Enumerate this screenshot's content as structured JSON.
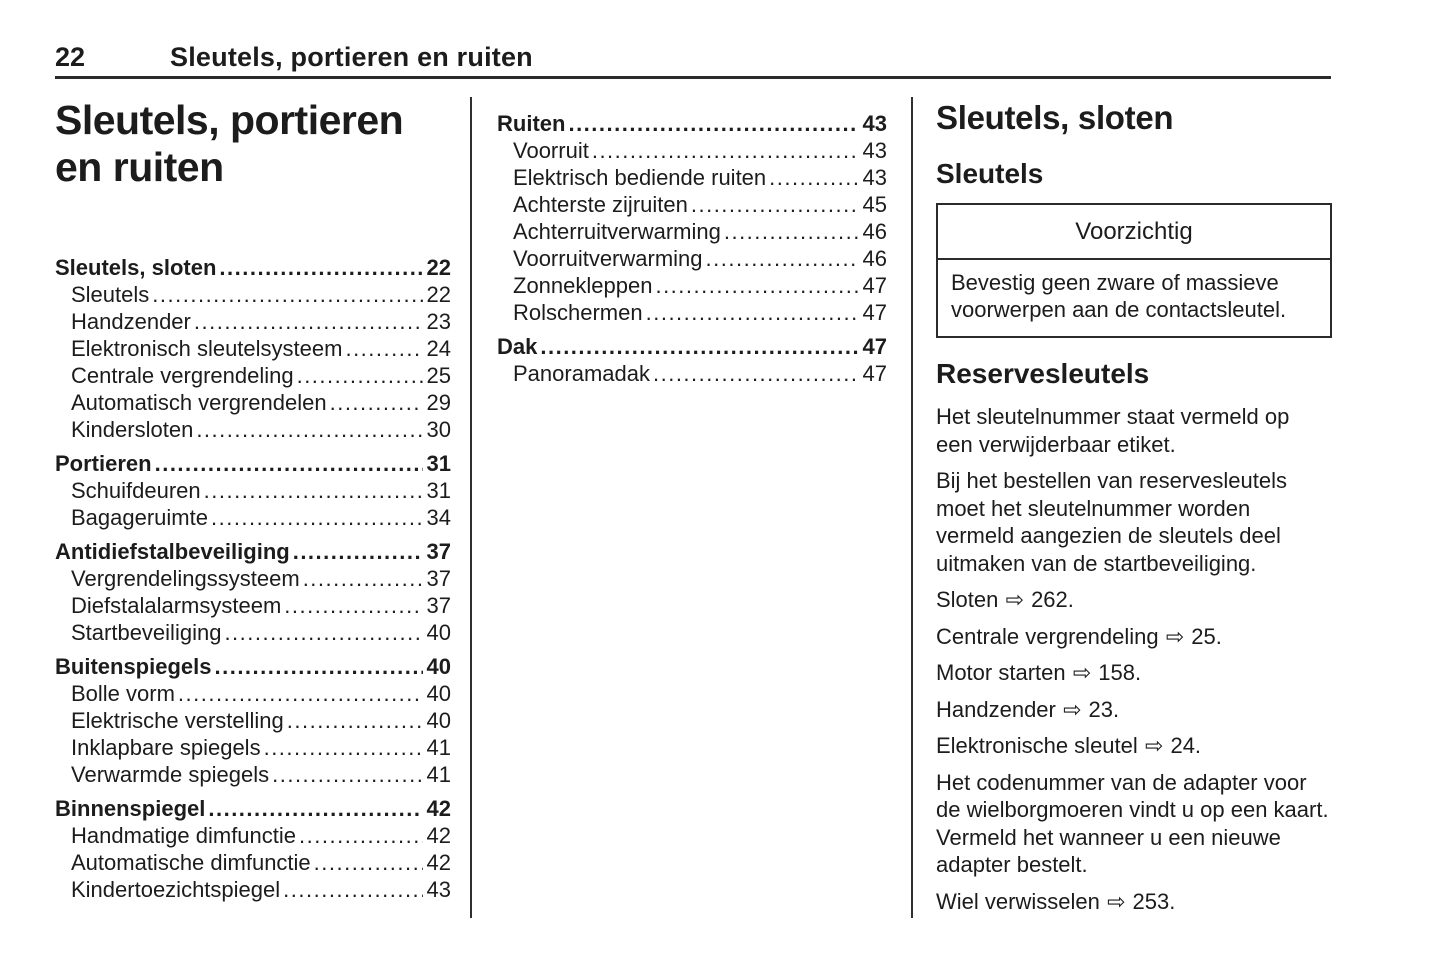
{
  "header": {
    "page_number": "22",
    "title": "Sleutels, portieren en ruiten"
  },
  "chapter": {
    "title_lines": [
      "Sleutels, portieren",
      "en ruiten"
    ]
  },
  "toc": {
    "column1": [
      {
        "label": "Sleutels, sloten",
        "page": "22",
        "level": 0
      },
      {
        "label": "Sleutels",
        "page": "22",
        "level": 1
      },
      {
        "label": "Handzender",
        "page": "23",
        "level": 1
      },
      {
        "label": "Elektronisch sleutelsysteem",
        "page": "24",
        "level": 1
      },
      {
        "label": "Centrale vergrendeling",
        "page": "25",
        "level": 1
      },
      {
        "label": "Automatisch vergrendelen",
        "page": "29",
        "level": 1
      },
      {
        "label": "Kindersloten",
        "page": "30",
        "level": 1
      },
      {
        "label": "Portieren",
        "page": "31",
        "level": 0
      },
      {
        "label": "Schuifdeuren",
        "page": "31",
        "level": 1
      },
      {
        "label": "Bagageruimte",
        "page": "34",
        "level": 1
      },
      {
        "label": "Antidiefstalbeveiliging",
        "page": "37",
        "level": 0
      },
      {
        "label": "Vergrendelingssysteem",
        "page": "37",
        "level": 1
      },
      {
        "label": "Diefstalalarmsysteem",
        "page": "37",
        "level": 1
      },
      {
        "label": "Startbeveiliging",
        "page": "40",
        "level": 1
      },
      {
        "label": "Buitenspiegels",
        "page": "40",
        "level": 0
      },
      {
        "label": "Bolle vorm",
        "page": "40",
        "level": 1
      },
      {
        "label": "Elektrische verstelling",
        "page": "40",
        "level": 1
      },
      {
        "label": "Inklapbare spiegels",
        "page": "41",
        "level": 1
      },
      {
        "label": "Verwarmde spiegels",
        "page": "41",
        "level": 1
      },
      {
        "label": "Binnenspiegel",
        "page": "42",
        "level": 0
      },
      {
        "label": "Handmatige dimfunctie",
        "page": "42",
        "level": 1
      },
      {
        "label": "Automatische dimfunctie",
        "page": "42",
        "level": 1
      },
      {
        "label": "Kindertoezichtspiegel",
        "page": "43",
        "level": 1
      }
    ],
    "column2": [
      {
        "label": "Ruiten",
        "page": "43",
        "level": 0
      },
      {
        "label": "Voorruit",
        "page": "43",
        "level": 1
      },
      {
        "label": "Elektrisch bediende ruiten",
        "page": "43",
        "level": 1
      },
      {
        "label": "Achterste zijruiten",
        "page": "45",
        "level": 1
      },
      {
        "label": "Achterruitverwarming",
        "page": "46",
        "level": 1
      },
      {
        "label": "Voorruitverwarming",
        "page": "46",
        "level": 1
      },
      {
        "label": "Zonnekleppen",
        "page": "47",
        "level": 1
      },
      {
        "label": "Rolschermen",
        "page": "47",
        "level": 1
      },
      {
        "label": "Dak",
        "page": "47",
        "level": 0
      },
      {
        "label": "Panoramadak",
        "page": "47",
        "level": 1
      }
    ]
  },
  "content": {
    "heading": "Sleutels, sloten",
    "subheading": "Sleutels",
    "caution": {
      "title": "Voorzichtig",
      "body": "Bevestig geen zware of massieve voorwerpen aan de contactsleutel."
    },
    "subheading2": "Reservesleutels",
    "items": [
      {
        "type": "p",
        "text": "Het sleutelnummer staat vermeld op een verwijderbaar etiket."
      },
      {
        "type": "p",
        "text": "Bij het bestellen van reservesleutels moet het sleutelnummer worden vermeld aangezien de sleutels deel uitmaken van de startbeveiliging."
      },
      {
        "type": "ref",
        "label": "Sloten",
        "target_page": "262"
      },
      {
        "type": "ref",
        "label": "Centrale vergrendeling",
        "target_page": "25"
      },
      {
        "type": "ref",
        "label": "Motor starten",
        "target_page": "158"
      },
      {
        "type": "ref",
        "label": "Handzender",
        "target_page": "23"
      },
      {
        "type": "ref",
        "label": "Elektronische sleutel",
        "target_page": "24"
      },
      {
        "type": "p",
        "text": "Het codenummer van de adapter voor de wielborgmoeren vindt u op een kaart. Vermeld het wanneer u een nieuwe adapter bestelt."
      },
      {
        "type": "ref",
        "label": "Wiel verwisselen",
        "target_page": "253"
      }
    ]
  },
  "icons": {
    "reference_arrow": "⇨"
  },
  "colors": {
    "ink": "#1c1c1c",
    "rule": "#2b2b2b",
    "background": "#ffffff"
  }
}
